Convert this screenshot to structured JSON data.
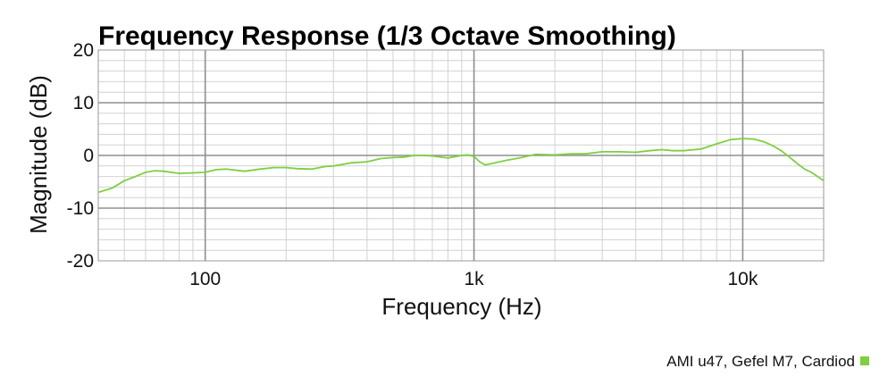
{
  "chart_data": {
    "type": "line",
    "title": "Frequency Response (1/3 Octave Smoothing)",
    "xlabel": "Frequency (Hz)",
    "ylabel": "Magnitude (dB)",
    "x_scale": "log",
    "xlim": [
      40,
      20000
    ],
    "ylim": [
      -20,
      20
    ],
    "x_ticks": [
      {
        "value": 100,
        "label": "100"
      },
      {
        "value": 1000,
        "label": "1k"
      },
      {
        "value": 10000,
        "label": "10k"
      }
    ],
    "y_ticks": [
      {
        "value": 20,
        "label": "20"
      },
      {
        "value": 10,
        "label": "10"
      },
      {
        "value": 0,
        "label": "0"
      },
      {
        "value": -10,
        "label": "-10"
      },
      {
        "value": -20,
        "label": "-20"
      }
    ],
    "grid": true,
    "legend_position": "bottom-right",
    "series": [
      {
        "name": "AMI u47, Gefel M7, Cardiod",
        "color": "#7fcf3f",
        "x": [
          40,
          45,
          50,
          55,
          60,
          65,
          70,
          80,
          90,
          100,
          110,
          120,
          140,
          160,
          180,
          200,
          220,
          250,
          280,
          300,
          350,
          400,
          450,
          500,
          550,
          600,
          650,
          700,
          800,
          900,
          950,
          1000,
          1050,
          1100,
          1200,
          1300,
          1500,
          1700,
          2000,
          2300,
          2600,
          3000,
          3500,
          4000,
          4500,
          5000,
          5500,
          6000,
          7000,
          8000,
          9000,
          10000,
          11000,
          12000,
          13000,
          14000,
          15000,
          16000,
          17000,
          18000,
          20000
        ],
        "y": [
          -7.0,
          -6.2,
          -4.8,
          -4.0,
          -3.2,
          -2.9,
          -3.0,
          -3.4,
          -3.3,
          -3.2,
          -2.7,
          -2.6,
          -3.0,
          -2.6,
          -2.3,
          -2.3,
          -2.5,
          -2.6,
          -2.1,
          -2.0,
          -1.4,
          -1.2,
          -0.6,
          -0.4,
          -0.3,
          0.0,
          0.0,
          -0.1,
          -0.5,
          0.0,
          0.1,
          -0.2,
          -1.2,
          -1.8,
          -1.4,
          -1.0,
          -0.4,
          0.2,
          0.1,
          0.3,
          0.3,
          0.7,
          0.7,
          0.6,
          0.9,
          1.1,
          0.9,
          0.9,
          1.2,
          2.2,
          3.0,
          3.2,
          3.1,
          2.6,
          1.8,
          0.8,
          -0.4,
          -1.6,
          -2.6,
          -3.2,
          -4.8
        ]
      }
    ]
  }
}
